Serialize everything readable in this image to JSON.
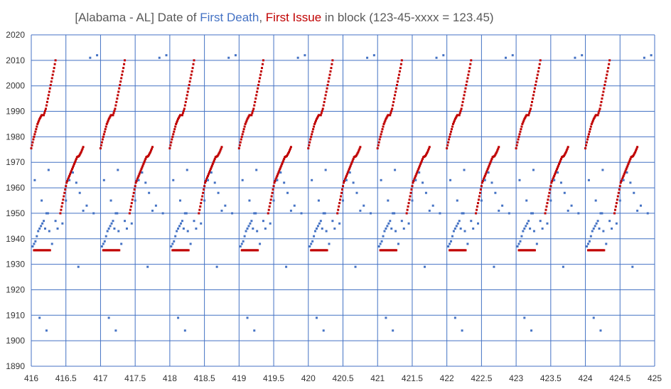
{
  "chart_data": {
    "type": "scatter",
    "title": {
      "parts": [
        {
          "text": "[Alabama - AL] Date of ",
          "color": "#595959"
        },
        {
          "text": "First Death",
          "color": "#4472C4"
        },
        {
          "text": ", ",
          "color": "#595959"
        },
        {
          "text": "First Issue",
          "color": "#C00000"
        },
        {
          "text": " in block (123-45-xxxx = 123.45)",
          "color": "#595959"
        }
      ]
    },
    "xlim": [
      416,
      425
    ],
    "ylim": [
      1890,
      2020
    ],
    "x_ticks": [
      416,
      416.5,
      417,
      417.5,
      418,
      418.5,
      419,
      419.5,
      420,
      420.5,
      421,
      421.5,
      422,
      422.5,
      423,
      423.5,
      424,
      424.5,
      425
    ],
    "y_ticks": [
      1890,
      1900,
      1910,
      1920,
      1930,
      1940,
      1950,
      1960,
      1970,
      1980,
      1990,
      2000,
      2010,
      2020
    ],
    "grid": true,
    "legend": "none",
    "colors": {
      "grid": "#4472C4",
      "first_death": "#4472C4",
      "first_issue": "#C00000"
    },
    "series": [
      {
        "key": "first_issue",
        "color": "#C00000",
        "pattern": {
          "blocks": [
            416,
            417,
            418,
            419,
            420,
            421,
            422,
            423,
            424
          ],
          "points": [
            [
              0.0,
              1975.5
            ],
            [
              0.03,
              1979
            ],
            [
              0.06,
              1982
            ],
            [
              0.09,
              1985
            ],
            [
              0.12,
              1987
            ],
            [
              0.15,
              1988.5
            ],
            [
              0.18,
              1988.5
            ],
            [
              0.21,
              1991
            ],
            [
              0.24,
              1995
            ],
            [
              0.27,
              1999
            ],
            [
              0.3,
              2003
            ],
            [
              0.33,
              2007
            ],
            [
              0.35,
              2010
            ],
            [
              0.04,
              1935.5
            ],
            [
              0.08,
              1935.5
            ],
            [
              0.12,
              1935.5
            ],
            [
              0.16,
              1935.5
            ],
            [
              0.2,
              1935.5
            ],
            [
              0.24,
              1935.5
            ],
            [
              0.27,
              1935.5
            ],
            [
              0.42,
              1950
            ],
            [
              0.45,
              1954
            ],
            [
              0.48,
              1958
            ],
            [
              0.51,
              1962
            ],
            [
              0.54,
              1964
            ],
            [
              0.57,
              1966
            ],
            [
              0.6,
              1968
            ],
            [
              0.63,
              1970
            ],
            [
              0.66,
              1972
            ],
            [
              0.69,
              1972.5
            ],
            [
              0.72,
              1974
            ],
            [
              0.75,
              1976
            ]
          ],
          "step": 0.01
        }
      },
      {
        "key": "first_death",
        "color": "#4472C4",
        "pattern": {
          "blocks": [
            416,
            417,
            418,
            419,
            420,
            421,
            422,
            423,
            424
          ],
          "points": [
            [
              0.02,
              1937
            ],
            [
              0.04,
              1938
            ],
            [
              0.06,
              1939
            ],
            [
              0.08,
              1941
            ],
            [
              0.1,
              1943
            ],
            [
              0.12,
              1944
            ],
            [
              0.14,
              1945
            ],
            [
              0.16,
              1946
            ],
            [
              0.18,
              1947
            ],
            [
              0.2,
              1944
            ],
            [
              0.22,
              1950
            ],
            [
              0.24,
              1950
            ],
            [
              0.26,
              1943
            ],
            [
              0.3,
              1938
            ],
            [
              0.05,
              1963
            ],
            [
              0.15,
              1955
            ],
            [
              0.25,
              1967
            ],
            [
              0.45,
              1946
            ],
            [
              0.5,
              1955
            ],
            [
              0.55,
              1963
            ],
            [
              0.6,
              1966
            ],
            [
              0.65,
              1962
            ],
            [
              0.7,
              1958
            ],
            [
              0.8,
              1953
            ],
            [
              0.9,
              1950
            ],
            [
              0.35,
              1947
            ],
            [
              0.38,
              1944
            ],
            [
              0.12,
              1909
            ],
            [
              0.22,
              1904
            ],
            [
              0.85,
              2011
            ],
            [
              0.95,
              2012
            ],
            [
              0.68,
              1929
            ],
            [
              0.75,
              1951
            ]
          ]
        }
      }
    ]
  }
}
